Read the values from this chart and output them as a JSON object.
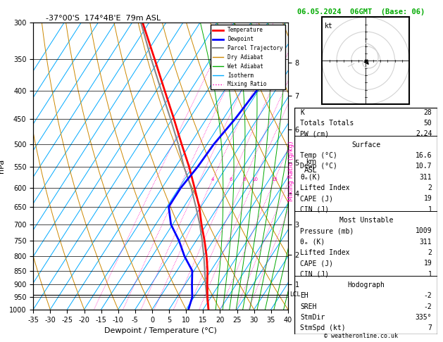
{
  "title_left": "-37°00'S  174°4B'E  79m ASL",
  "title_right": "06.05.2024  06GMT  (Base: 06)",
  "xlabel": "Dewpoint / Temperature (°C)",
  "ylabel_left": "hPa",
  "pressure_levels": [
    300,
    350,
    400,
    450,
    500,
    550,
    600,
    650,
    700,
    750,
    800,
    850,
    900,
    950,
    1000
  ],
  "temp_profile_p": [
    1000,
    950,
    900,
    850,
    800,
    750,
    700,
    650,
    600,
    550,
    500,
    450,
    400,
    350,
    300
  ],
  "temp_profile_t": [
    16.6,
    14.0,
    11.5,
    9.0,
    6.0,
    2.5,
    -1.5,
    -5.5,
    -10.5,
    -16.0,
    -22.5,
    -29.5,
    -37.5,
    -46.5,
    -57.0
  ],
  "dewp_profile_p": [
    1000,
    950,
    900,
    850,
    800,
    750,
    700,
    650,
    600,
    550,
    500,
    450,
    400
  ],
  "dewp_profile_t": [
    10.7,
    9.5,
    7.0,
    4.5,
    -0.5,
    -5.0,
    -10.5,
    -14.5,
    -14.5,
    -13.5,
    -13.0,
    -11.5,
    -10.5
  ],
  "parcel_profile_p": [
    1000,
    950,
    900,
    850,
    800,
    750,
    700,
    650,
    600,
    550,
    500,
    450,
    400,
    350,
    300
  ],
  "parcel_profile_t": [
    16.6,
    13.8,
    11.0,
    8.2,
    5.2,
    1.8,
    -2.0,
    -6.5,
    -11.5,
    -17.5,
    -23.5,
    -30.5,
    -38.5,
    -47.5,
    -57.5
  ],
  "lcl_pressure": 940,
  "mixing_ratios": [
    1,
    2,
    3,
    4,
    6,
    8,
    10,
    15,
    20,
    25
  ],
  "km_levels_km": [
    1,
    2,
    3,
    4,
    5,
    6,
    7,
    8
  ],
  "km_levels_p": [
    899,
    795,
    700,
    615,
    540,
    470,
    408,
    355
  ],
  "tmin": -40,
  "tmax": 40,
  "pmin": 300,
  "pmax": 1000,
  "skew": 45.0,
  "stats_K": 28,
  "stats_TT": 50,
  "stats_PW": 2.24,
  "stats_SfcTemp": 16.6,
  "stats_SfcDewp": 10.7,
  "stats_SfcThE": 311,
  "stats_SfcLI": 2,
  "stats_SfcCAPE": 19,
  "stats_SfcCIN": 1,
  "stats_MUP": 1009,
  "stats_MUThE": 311,
  "stats_MULI": 2,
  "stats_MUCAPE": 19,
  "stats_MUCIN": 1,
  "stats_EH": -2,
  "stats_SREH": -2,
  "stats_StmDir": 335,
  "stats_StmSpd": 7,
  "color_temp": "#ff0000",
  "color_dewp": "#0000ff",
  "color_parcel": "#888888",
  "color_dry": "#cc8800",
  "color_wet": "#00aa00",
  "color_iso": "#00aaff",
  "color_mr": "#ff00bb",
  "color_title_right": "#00aa00"
}
